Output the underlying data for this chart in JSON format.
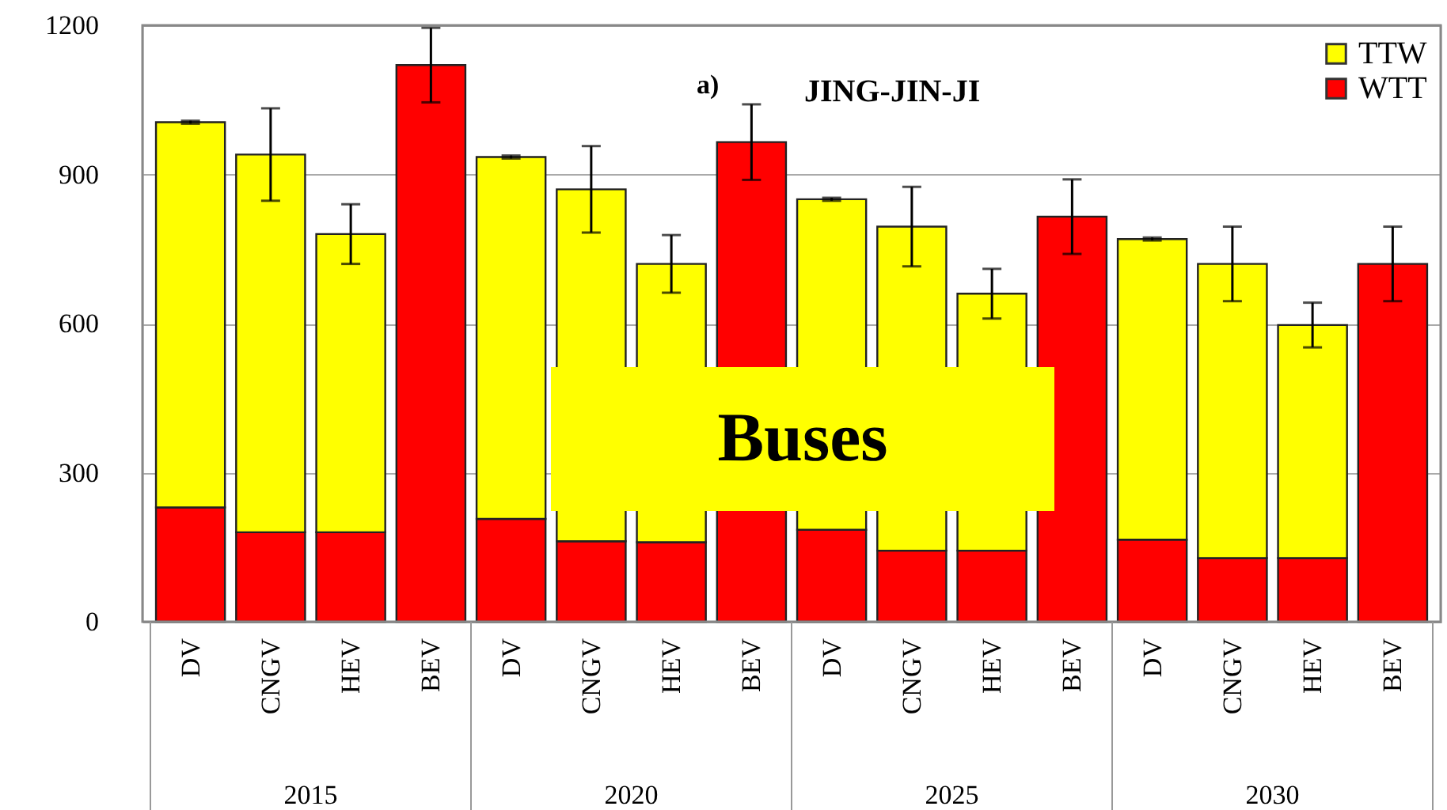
{
  "chart_data": {
    "type": "bar",
    "title": "JING-JIN-JI",
    "stacked": true,
    "categories": [
      "DV",
      "CNGV",
      "HEV",
      "BEV",
      "DV",
      "CNGV",
      "HEV",
      "BEV",
      "DV",
      "CNGV",
      "HEV",
      "BEV",
      "DV",
      "CNGV",
      "HEV",
      "BEV"
    ],
    "series": [
      {
        "name": "WTT",
        "color": "#ff0000",
        "values": [
          230,
          180,
          180,
          1120,
          207,
          162,
          160,
          965,
          185,
          143,
          143,
          815,
          165,
          128,
          128,
          720
        ],
        "errors": [
          null,
          null,
          null,
          75,
          null,
          null,
          null,
          76,
          null,
          null,
          null,
          75,
          null,
          null,
          null,
          75
        ]
      },
      {
        "name": "TTW",
        "color": "#ffff00",
        "values": [
          775,
          760,
          600,
          null,
          728,
          708,
          560,
          null,
          665,
          652,
          517,
          null,
          605,
          592,
          469,
          null
        ],
        "errors": [
          3,
          93,
          60,
          null,
          3,
          87,
          58,
          null,
          3,
          80,
          50,
          null,
          3,
          75,
          45,
          null
        ]
      }
    ],
    "ylim": [
      0,
      1200
    ],
    "yticks": [
      0,
      300,
      600,
      900,
      1200
    ],
    "grid": "y",
    "legend": "top right",
    "annotations": [
      "a)",
      "Buses",
      "2015",
      "2020",
      "2025",
      "2030"
    ]
  }
}
